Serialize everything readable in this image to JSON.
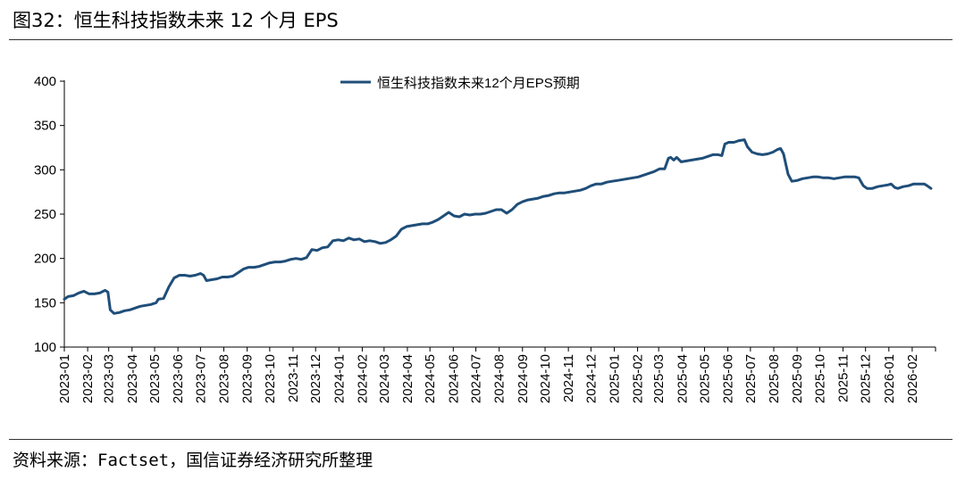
{
  "figure": {
    "title": "图32：恒生科技指数未来 12 个月 EPS",
    "source": "资料来源：Factset，国信证券经济研究所整理"
  },
  "chart_data": {
    "type": "line",
    "title": "",
    "xlabel": "",
    "ylabel": "",
    "ylim": [
      100,
      400
    ],
    "yticks": [
      100,
      150,
      200,
      250,
      300,
      350,
      400
    ],
    "grid": false,
    "legend_position": "top-center",
    "x_start": "2023-01",
    "categories": [
      "2023-01",
      "2023-02",
      "2023-03",
      "2023-04",
      "2023-05",
      "2023-06",
      "2023-07",
      "2023-08",
      "2023-09",
      "2023-10",
      "2023-11",
      "2023-12",
      "2024-01",
      "2024-02",
      "2024-03",
      "2024-04",
      "2024-05",
      "2024-06",
      "2024-07",
      "2024-08",
      "2024-09",
      "2024-10",
      "2024-11",
      "2024-12",
      "2025-01",
      "2025-02",
      "2025-03",
      "2025-04",
      "2025-05",
      "2025-06",
      "2025-07",
      "2025-08",
      "2025-09",
      "2025-10",
      "2025-11",
      "2025-12",
      "2026-01",
      "2026-02"
    ],
    "series": [
      {
        "name": "恒生科技指数未来12个月EPS预期",
        "color": "#1f4e79",
        "points": [
          [
            "2023-01-01",
            154
          ],
          [
            "2023-01-06",
            157
          ],
          [
            "2023-01-13",
            158
          ],
          [
            "2023-01-20",
            161
          ],
          [
            "2023-01-27",
            163
          ],
          [
            "2023-02-03",
            160
          ],
          [
            "2023-02-10",
            160
          ],
          [
            "2023-02-17",
            161
          ],
          [
            "2023-02-24",
            164
          ],
          [
            "2023-02-28",
            162
          ],
          [
            "2023-03-03",
            142
          ],
          [
            "2023-03-08",
            138
          ],
          [
            "2023-03-15",
            139
          ],
          [
            "2023-03-22",
            141
          ],
          [
            "2023-03-29",
            142
          ],
          [
            "2023-04-05",
            144
          ],
          [
            "2023-04-12",
            146
          ],
          [
            "2023-04-19",
            147
          ],
          [
            "2023-04-26",
            148
          ],
          [
            "2023-05-03",
            150
          ],
          [
            "2023-05-06",
            154
          ],
          [
            "2023-05-13",
            155
          ],
          [
            "2023-05-20",
            168
          ],
          [
            "2023-05-27",
            178
          ],
          [
            "2023-06-03",
            181
          ],
          [
            "2023-06-10",
            181
          ],
          [
            "2023-06-17",
            180
          ],
          [
            "2023-06-24",
            181
          ],
          [
            "2023-07-01",
            183
          ],
          [
            "2023-07-05",
            181
          ],
          [
            "2023-07-09",
            175
          ],
          [
            "2023-07-16",
            176
          ],
          [
            "2023-07-23",
            177
          ],
          [
            "2023-07-30",
            179
          ],
          [
            "2023-08-06",
            179
          ],
          [
            "2023-08-13",
            180
          ],
          [
            "2023-08-20",
            184
          ],
          [
            "2023-08-27",
            188
          ],
          [
            "2023-09-03",
            190
          ],
          [
            "2023-09-10",
            190
          ],
          [
            "2023-09-17",
            191
          ],
          [
            "2023-09-24",
            193
          ],
          [
            "2023-10-01",
            195
          ],
          [
            "2023-10-08",
            196
          ],
          [
            "2023-10-15",
            196
          ],
          [
            "2023-10-22",
            197
          ],
          [
            "2023-10-29",
            199
          ],
          [
            "2023-11-05",
            200
          ],
          [
            "2023-11-12",
            199
          ],
          [
            "2023-11-19",
            201
          ],
          [
            "2023-11-26",
            210
          ],
          [
            "2023-12-03",
            209
          ],
          [
            "2023-12-10",
            212
          ],
          [
            "2023-12-17",
            213
          ],
          [
            "2023-12-24",
            220
          ],
          [
            "2023-12-31",
            221
          ],
          [
            "2024-01-07",
            220
          ],
          [
            "2024-01-14",
            223
          ],
          [
            "2024-01-21",
            221
          ],
          [
            "2024-01-28",
            222
          ],
          [
            "2024-02-04",
            219
          ],
          [
            "2024-02-11",
            220
          ],
          [
            "2024-02-18",
            219
          ],
          [
            "2024-02-25",
            217
          ],
          [
            "2024-03-03",
            218
          ],
          [
            "2024-03-10",
            221
          ],
          [
            "2024-03-17",
            225
          ],
          [
            "2024-03-24",
            233
          ],
          [
            "2024-03-31",
            236
          ],
          [
            "2024-04-07",
            237
          ],
          [
            "2024-04-14",
            238
          ],
          [
            "2024-04-21",
            239
          ],
          [
            "2024-04-28",
            239
          ],
          [
            "2024-05-05",
            241
          ],
          [
            "2024-05-12",
            244
          ],
          [
            "2024-05-19",
            248
          ],
          [
            "2024-05-26",
            252
          ],
          [
            "2024-06-02",
            248
          ],
          [
            "2024-06-09",
            247
          ],
          [
            "2024-06-16",
            250
          ],
          [
            "2024-06-23",
            249
          ],
          [
            "2024-06-30",
            250
          ],
          [
            "2024-07-07",
            250
          ],
          [
            "2024-07-14",
            251
          ],
          [
            "2024-07-21",
            253
          ],
          [
            "2024-07-28",
            255
          ],
          [
            "2024-08-04",
            255
          ],
          [
            "2024-08-11",
            251
          ],
          [
            "2024-08-18",
            255
          ],
          [
            "2024-08-25",
            261
          ],
          [
            "2024-09-01",
            264
          ],
          [
            "2024-09-08",
            266
          ],
          [
            "2024-09-15",
            267
          ],
          [
            "2024-09-22",
            268
          ],
          [
            "2024-09-29",
            270
          ],
          [
            "2024-10-06",
            271
          ],
          [
            "2024-10-13",
            273
          ],
          [
            "2024-10-20",
            274
          ],
          [
            "2024-10-27",
            274
          ],
          [
            "2024-11-03",
            275
          ],
          [
            "2024-11-10",
            276
          ],
          [
            "2024-11-17",
            277
          ],
          [
            "2024-11-24",
            279
          ],
          [
            "2024-12-01",
            282
          ],
          [
            "2024-12-08",
            284
          ],
          [
            "2024-12-15",
            284
          ],
          [
            "2024-12-22",
            286
          ],
          [
            "2024-12-29",
            287
          ],
          [
            "2025-01-05",
            288
          ],
          [
            "2025-01-12",
            289
          ],
          [
            "2025-01-19",
            290
          ],
          [
            "2025-01-26",
            291
          ],
          [
            "2025-02-02",
            292
          ],
          [
            "2025-02-09",
            294
          ],
          [
            "2025-02-16",
            296
          ],
          [
            "2025-02-23",
            298
          ],
          [
            "2025-03-02",
            301
          ],
          [
            "2025-03-09",
            301
          ],
          [
            "2025-03-14",
            313
          ],
          [
            "2025-03-17",
            314
          ],
          [
            "2025-03-21",
            311
          ],
          [
            "2025-03-25",
            314
          ],
          [
            "2025-03-31",
            309
          ],
          [
            "2025-04-07",
            310
          ],
          [
            "2025-04-14",
            311
          ],
          [
            "2025-04-21",
            312
          ],
          [
            "2025-04-28",
            313
          ],
          [
            "2025-05-05",
            315
          ],
          [
            "2025-05-12",
            317
          ],
          [
            "2025-05-19",
            317
          ],
          [
            "2025-05-24",
            316
          ],
          [
            "2025-05-28",
            329
          ],
          [
            "2025-06-02",
            331
          ],
          [
            "2025-06-09",
            331
          ],
          [
            "2025-06-16",
            333
          ],
          [
            "2025-06-23",
            334
          ],
          [
            "2025-06-27",
            326
          ],
          [
            "2025-07-03",
            320
          ],
          [
            "2025-07-10",
            318
          ],
          [
            "2025-07-17",
            317
          ],
          [
            "2025-07-24",
            318
          ],
          [
            "2025-07-31",
            320
          ],
          [
            "2025-08-06",
            323
          ],
          [
            "2025-08-10",
            324
          ],
          [
            "2025-08-14",
            318
          ],
          [
            "2025-08-20",
            295
          ],
          [
            "2025-08-25",
            287
          ],
          [
            "2025-09-01",
            288
          ],
          [
            "2025-09-08",
            290
          ],
          [
            "2025-09-15",
            291
          ],
          [
            "2025-09-22",
            292
          ],
          [
            "2025-09-29",
            292
          ],
          [
            "2025-10-06",
            291
          ],
          [
            "2025-10-13",
            291
          ],
          [
            "2025-10-20",
            290
          ],
          [
            "2025-10-27",
            291
          ],
          [
            "2025-11-03",
            292
          ],
          [
            "2025-11-10",
            292
          ],
          [
            "2025-11-17",
            292
          ],
          [
            "2025-11-22",
            291
          ],
          [
            "2025-11-28",
            282
          ],
          [
            "2025-12-03",
            279
          ],
          [
            "2025-12-10",
            279
          ],
          [
            "2025-12-17",
            281
          ],
          [
            "2025-12-24",
            282
          ],
          [
            "2025-12-31",
            283
          ],
          [
            "2026-01-04",
            284
          ],
          [
            "2026-01-09",
            280
          ],
          [
            "2026-01-13",
            279
          ],
          [
            "2026-01-20",
            281
          ],
          [
            "2026-01-27",
            282
          ],
          [
            "2026-02-03",
            284
          ],
          [
            "2026-02-10",
            284
          ],
          [
            "2026-02-17",
            284
          ],
          [
            "2026-02-21",
            282
          ],
          [
            "2026-02-26",
            279
          ]
        ]
      }
    ]
  }
}
